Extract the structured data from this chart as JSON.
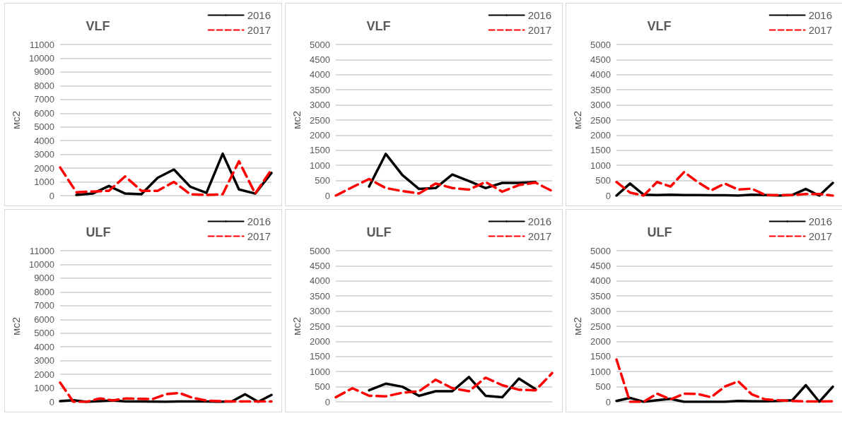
{
  "chart_data": [
    {
      "type": "line",
      "title": "VLF",
      "ylabel": "мс2",
      "categories": [
        null,
        null,
        null,
        null,
        null,
        null,
        null,
        null,
        null,
        null,
        null,
        null,
        null,
        null
      ],
      "ylim": [
        0,
        11000
      ],
      "yticks": [
        0,
        1000,
        2000,
        3000,
        4000,
        5000,
        6000,
        7000,
        8000,
        9000,
        10000,
        11000
      ],
      "grid": "y",
      "legend": "top right",
      "marker": "none",
      "series": [
        {
          "name": "2016",
          "color": "#000000",
          "line_style": "solid",
          "values": [
            null,
            50,
            150,
            700,
            150,
            100,
            1300,
            1900,
            650,
            200,
            3050,
            450,
            150,
            1650
          ]
        },
        {
          "name": "2017",
          "color": "#ff0000",
          "line_style": "dashed",
          "values": [
            2050,
            250,
            300,
            350,
            1400,
            350,
            350,
            1000,
            100,
            50,
            100,
            2500,
            150,
            1900
          ]
        }
      ]
    },
    {
      "type": "line",
      "title": "VLF",
      "ylabel": "мс2",
      "categories": [
        null,
        null,
        null,
        null,
        null,
        null,
        null,
        null,
        null,
        null,
        null,
        null,
        null,
        null
      ],
      "ylim": [
        0,
        5000
      ],
      "yticks": [
        0,
        500,
        1000,
        1500,
        2000,
        2500,
        3000,
        3500,
        4000,
        4500,
        5000
      ],
      "grid": "y",
      "legend": "top right",
      "marker": "none",
      "series": [
        {
          "name": "2016",
          "color": "#000000",
          "line_style": "solid",
          "values": [
            null,
            null,
            300,
            1380,
            680,
            220,
            250,
            700,
            480,
            250,
            420,
            420,
            450,
            null
          ]
        },
        {
          "name": "2017",
          "color": "#ff0000",
          "line_style": "dashed",
          "values": [
            0,
            280,
            550,
            250,
            150,
            70,
            400,
            250,
            200,
            450,
            130,
            350,
            430,
            150
          ]
        }
      ]
    },
    {
      "type": "line",
      "title": "VLF",
      "ylabel": "мс2",
      "categories": [
        null,
        null,
        null,
        null,
        null,
        null,
        null,
        null,
        null,
        null,
        null,
        null,
        null,
        null,
        null,
        null,
        null
      ],
      "ylim": [
        0,
        5000
      ],
      "yticks": [
        0,
        500,
        1000,
        1500,
        2000,
        2500,
        3000,
        3500,
        4000,
        4500,
        5000
      ],
      "grid": "y",
      "legend": "top right",
      "marker": "none",
      "series": [
        {
          "name": "2016",
          "color": "#000000",
          "line_style": "solid",
          "values": [
            0,
            400,
            30,
            20,
            30,
            20,
            20,
            10,
            10,
            0,
            30,
            20,
            0,
            20,
            220,
            0,
            420
          ]
        },
        {
          "name": "2017",
          "color": "#ff0000",
          "line_style": "dashed",
          "values": [
            450,
            100,
            0,
            450,
            300,
            780,
            450,
            170,
            400,
            200,
            230,
            20,
            20,
            20,
            50,
            50,
            0
          ]
        }
      ]
    },
    {
      "type": "line",
      "title": "ULF",
      "ylabel": "мс2",
      "categories": [
        null,
        null,
        null,
        null,
        null,
        null,
        null,
        null,
        null,
        null,
        null,
        null,
        null,
        null,
        null,
        null,
        null
      ],
      "ylim": [
        0,
        11000
      ],
      "yticks": [
        0,
        1000,
        2000,
        3000,
        4000,
        5000,
        6000,
        7000,
        8000,
        9000,
        10000,
        11000
      ],
      "grid": "y",
      "legend": "top right",
      "marker": "none",
      "series": [
        {
          "name": "2016",
          "color": "#000000",
          "line_style": "solid",
          "values": [
            50,
            120,
            0,
            50,
            100,
            20,
            20,
            10,
            0,
            30,
            20,
            20,
            0,
            30,
            550,
            0,
            500
          ]
        },
        {
          "name": "2017",
          "color": "#ff0000",
          "line_style": "dashed",
          "values": [
            1400,
            0,
            0,
            250,
            100,
            250,
            220,
            200,
            550,
            650,
            300,
            100,
            50,
            20,
            20,
            20,
            20
          ]
        }
      ]
    },
    {
      "type": "line",
      "title": "ULF",
      "ylabel": "мс2",
      "categories": [
        null,
        null,
        null,
        null,
        null,
        null,
        null,
        null,
        null,
        null,
        null,
        null,
        null,
        null
      ],
      "ylim": [
        0,
        5000
      ],
      "yticks": [
        0,
        500,
        1000,
        1500,
        2000,
        2500,
        3000,
        3500,
        4000,
        4500,
        5000
      ],
      "grid": "y",
      "legend": "top right",
      "marker": "none",
      "series": [
        {
          "name": "2016",
          "color": "#000000",
          "line_style": "solid",
          "values": [
            null,
            null,
            380,
            600,
            500,
            200,
            350,
            350,
            820,
            200,
            150,
            770,
            420,
            null
          ]
        },
        {
          "name": "2017",
          "color": "#ff0000",
          "line_style": "dashed",
          "values": [
            150,
            450,
            200,
            180,
            300,
            350,
            730,
            450,
            350,
            800,
            550,
            400,
            380,
            950
          ]
        }
      ]
    },
    {
      "type": "line",
      "title": "ULF",
      "ylabel": "мс2",
      "categories": [
        null,
        null,
        null,
        null,
        null,
        null,
        null,
        null,
        null,
        null,
        null,
        null,
        null,
        null,
        null,
        null,
        null
      ],
      "ylim": [
        0,
        5000
      ],
      "yticks": [
        0,
        500,
        1000,
        1500,
        2000,
        2500,
        3000,
        3500,
        4000,
        4500,
        5000
      ],
      "grid": "y",
      "legend": "top right",
      "marker": "none",
      "series": [
        {
          "name": "2016",
          "color": "#000000",
          "line_style": "solid",
          "values": [
            30,
            130,
            0,
            50,
            100,
            0,
            0,
            0,
            0,
            30,
            20,
            20,
            30,
            50,
            550,
            0,
            500
          ]
        },
        {
          "name": "2017",
          "color": "#ff0000",
          "line_style": "dashed",
          "values": [
            1400,
            0,
            0,
            270,
            80,
            270,
            260,
            150,
            500,
            680,
            250,
            80,
            50,
            30,
            10,
            10,
            20
          ]
        }
      ]
    }
  ]
}
